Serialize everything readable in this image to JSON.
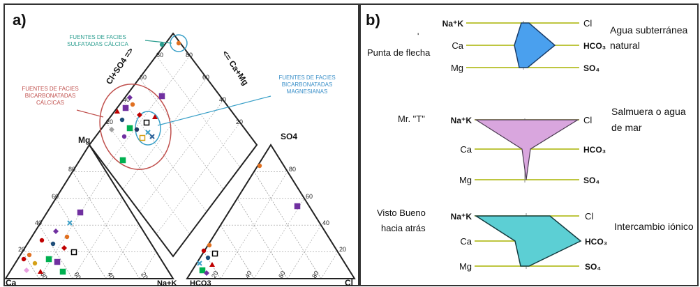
{
  "panel_a": {
    "label": "a)",
    "callouts": {
      "sulfatadas": [
        "FUENTES DE FACIES",
        "SULFATADAS CÁLCICA"
      ],
      "bicarbonatadas_calcicas": [
        "FUENTES DE FACIES",
        "BICARBONATADAS",
        "CÁLCICAS"
      ],
      "bicarbonatadas_magnesianas": [
        "FUENTES DE FACIES",
        "BICARBONATADAS",
        "MAGNESIANAS"
      ]
    },
    "axis_labels": {
      "mg": "Mg",
      "ca": "Ca",
      "na_k": "Na+K",
      "hco3": "HCO3",
      "cl": "Cl",
      "so4": "SO4",
      "cl_so4": "Cl+SO4 =>",
      "ca_mg": "<= Ca+Mg"
    },
    "ticks": {
      "cation_mg_side": [
        "80",
        "60",
        "40",
        "20"
      ],
      "cation_bottom": [
        "80",
        "60",
        "40",
        "20"
      ],
      "anion_right_side": [
        "80",
        "60",
        "40",
        "20"
      ],
      "anion_bottom": [
        "20",
        "40",
        "60",
        "80"
      ],
      "diamond_left_side": [
        "80",
        "60",
        "40",
        "20"
      ],
      "diamond_right_side": [
        "80",
        "60",
        "40",
        "20"
      ]
    }
  },
  "panel_b": {
    "label": "b)",
    "rows": [
      {
        "name": "Punta de flecha",
        "left_labels": [
          "Na⁺K",
          "Ca",
          "Mg"
        ],
        "right_labels": [
          "Cl",
          "HCO₃",
          "SO₄"
        ],
        "description": [
          "Agua subterránea",
          "natural"
        ],
        "color": "#4aa0ee"
      },
      {
        "name": "Mr. \"T\"",
        "left_labels": [
          "Na⁺K",
          "Ca",
          "Mg"
        ],
        "right_labels": [
          "Cl",
          "HCO₃",
          "SO₄"
        ],
        "description": [
          "Salmuera o agua",
          "de mar"
        ],
        "color": "#d9a6de"
      },
      {
        "name": [
          "Visto Bueno",
          "hacia atrás"
        ],
        "left_labels": [
          "Na⁺K",
          "Ca",
          "Mg"
        ],
        "right_labels": [
          "Cl",
          "HCO₃",
          "SO₄"
        ],
        "description": [
          "Intercambio iónico"
        ],
        "color": "#5ccfd4"
      }
    ],
    "axis_line_color": "#a8b400"
  }
}
